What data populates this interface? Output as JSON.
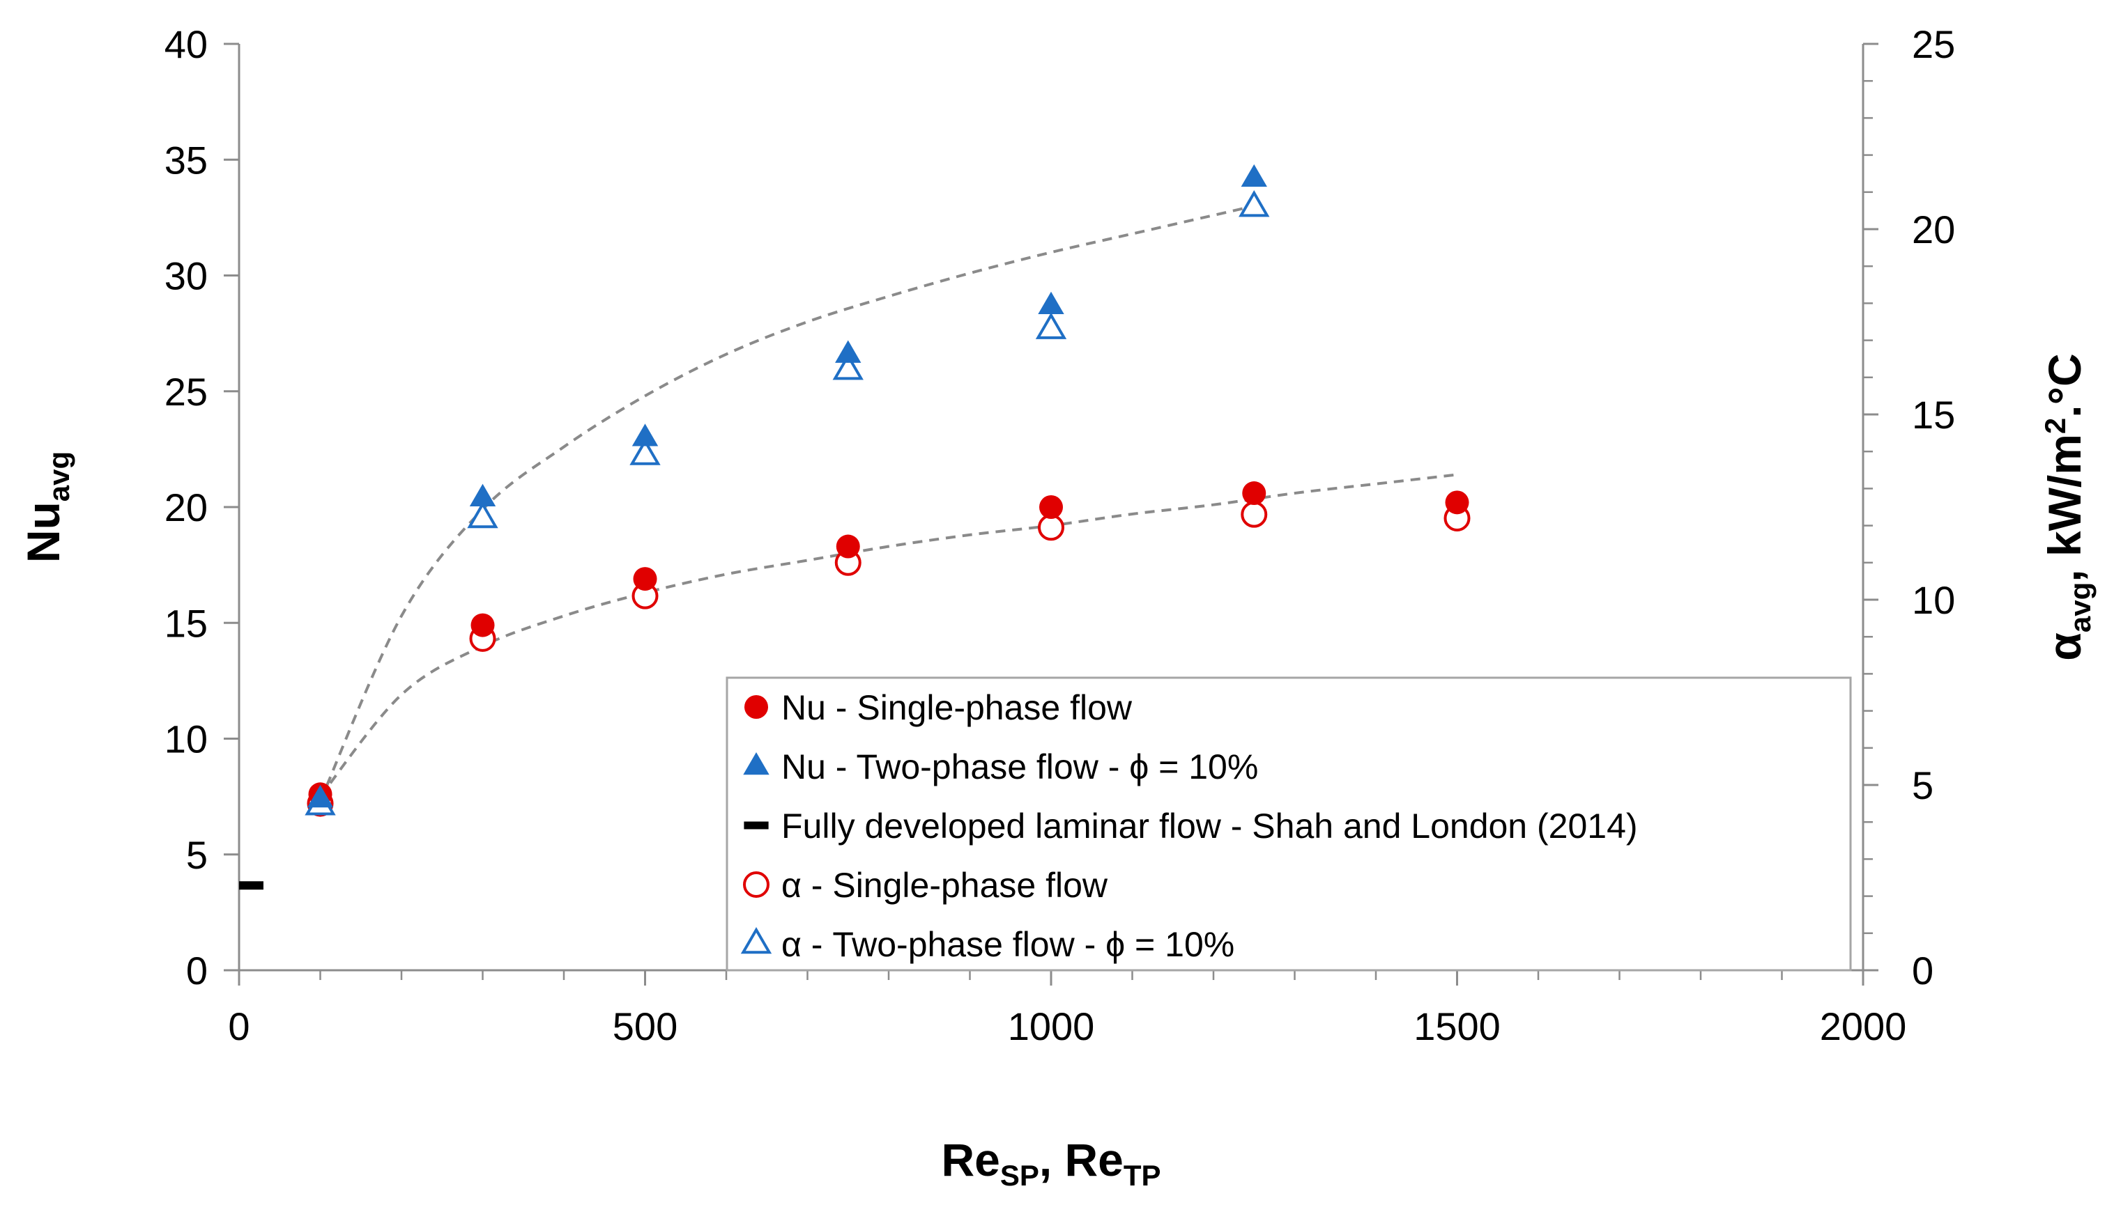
{
  "chart_data": {
    "type": "scatter",
    "x_axis": {
      "title_main": "Re",
      "title_sub1": "SP",
      "title_sep": ", Re",
      "title_sub2": "TP",
      "range": [
        0,
        2000
      ],
      "ticks": [
        0,
        500,
        1000,
        1500,
        2000
      ],
      "tick_labels": [
        "0",
        "500",
        "1000",
        "1500",
        "2000"
      ],
      "minor_step": 100
    },
    "y_axis_left": {
      "title_main": "Nu",
      "title_sub": "avg",
      "range": [
        0,
        40
      ],
      "ticks": [
        0,
        5,
        10,
        15,
        20,
        25,
        30,
        35,
        40
      ],
      "tick_labels": [
        "0",
        "5",
        "10",
        "15",
        "20",
        "25",
        "30",
        "35",
        "40"
      ]
    },
    "y_axis_right": {
      "title_main": "α",
      "title_sub": "avg",
      "title_rest": ", kW/m",
      "title_sup": "2",
      "title_end": ".°C",
      "range": [
        0,
        25
      ],
      "ticks": [
        0,
        5,
        10,
        15,
        20,
        25
      ],
      "tick_labels": [
        "0",
        "5",
        "10",
        "15",
        "20",
        "25"
      ],
      "minor_step": 1
    },
    "series": [
      {
        "name": "Nu - Single-phase flow",
        "marker": "filled-circle",
        "color": "#e00000",
        "axis": "left",
        "x": [
          100,
          300,
          500,
          750,
          1000,
          1250,
          1500
        ],
        "y": [
          7.6,
          14.9,
          16.9,
          18.3,
          20.0,
          20.6,
          20.2
        ]
      },
      {
        "name": "Nu - Two-phase flow - ϕ = 10%",
        "marker": "filled-triangle",
        "color": "#1f6fc5",
        "axis": "left",
        "x": [
          100,
          300,
          500,
          750,
          1000,
          1250
        ],
        "y": [
          7.4,
          20.4,
          23.0,
          26.6,
          28.7,
          34.2
        ]
      },
      {
        "name": "Fully developed laminar flow - Shah and London (2014)",
        "marker": "dash",
        "color": "#000000",
        "axis": "left",
        "x": [
          0,
          30
        ],
        "y": [
          3.66,
          3.66
        ]
      },
      {
        "name": "α - Single-phase flow",
        "marker": "open-circle",
        "color": "#e00000",
        "axis": "right",
        "x": [
          100,
          300,
          500,
          750,
          1000,
          1250,
          1500
        ],
        "y": [
          4.5,
          8.95,
          10.1,
          11.0,
          11.95,
          12.3,
          12.2
        ]
      },
      {
        "name": "α - Two-phase flow - ϕ = 10%",
        "marker": "open-triangle",
        "color": "#1f6fc5",
        "axis": "right",
        "x": [
          100,
          300,
          500,
          750,
          1000,
          1250
        ],
        "y": [
          4.45,
          12.2,
          13.9,
          16.2,
          17.3,
          20.6
        ]
      }
    ],
    "trendlines": [
      {
        "name": "two-phase trend",
        "style": "dashed",
        "color": "#8a8a8a",
        "axis": "left",
        "x": [
          100,
          200,
          300,
          400,
          500,
          600,
          700,
          800,
          900,
          1000,
          1100,
          1200,
          1250
        ],
        "y": [
          7.3,
          15.3,
          19.9,
          22.6,
          24.8,
          26.6,
          28.0,
          29.1,
          30.1,
          31.0,
          31.8,
          32.6,
          33.0
        ]
      },
      {
        "name": "single-phase trend",
        "style": "dashed",
        "color": "#8a8a8a",
        "axis": "left",
        "x": [
          100,
          200,
          300,
          400,
          500,
          600,
          700,
          800,
          900,
          1000,
          1100,
          1200,
          1300,
          1400,
          1500
        ],
        "y": [
          7.5,
          11.9,
          14.0,
          15.3,
          16.3,
          17.1,
          17.7,
          18.3,
          18.8,
          19.2,
          19.7,
          20.1,
          20.6,
          21.0,
          21.4
        ]
      }
    ],
    "legend": {
      "position": "bottom-right",
      "entries": [
        {
          "label": "Nu - Single-phase flow",
          "marker": "filled-circle",
          "color": "#e00000"
        },
        {
          "label": "Nu - Two-phase flow - ϕ = 10%",
          "marker": "filled-triangle",
          "color": "#1f6fc5"
        },
        {
          "label": "Fully developed laminar flow - Shah and London (2014)",
          "marker": "dash",
          "color": "#000000"
        },
        {
          "label": "α - Single-phase flow",
          "marker": "open-circle",
          "color": "#e00000"
        },
        {
          "label": "α - Two-phase flow - ϕ = 10%",
          "marker": "open-triangle",
          "color": "#1f6fc5"
        }
      ]
    },
    "grid": false
  }
}
